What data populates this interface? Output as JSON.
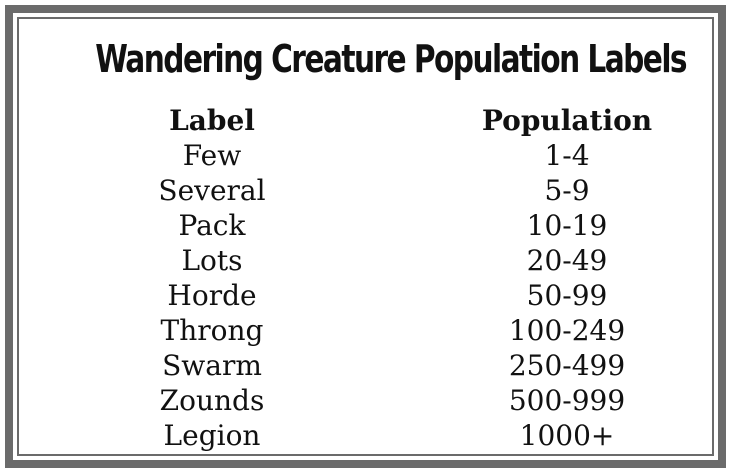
{
  "title": "Wandering Creature Population Labels",
  "columns": [
    "Label",
    "Population"
  ],
  "rows": [
    {
      "label": "Few",
      "population": "1-4"
    },
    {
      "label": "Several",
      "population": "5-9"
    },
    {
      "label": "Pack",
      "population": "10-19"
    },
    {
      "label": "Lots",
      "population": "20-49"
    },
    {
      "label": "Horde",
      "population": "50-99"
    },
    {
      "label": "Throng",
      "population": "100-249"
    },
    {
      "label": "Swarm",
      "population": "250-499"
    },
    {
      "label": "Zounds",
      "population": "500-999"
    },
    {
      "label": "Legion",
      "population": "1000+"
    }
  ],
  "colors": {
    "border": "#6b6b6b",
    "text": "#111111",
    "background": "#ffffff"
  }
}
